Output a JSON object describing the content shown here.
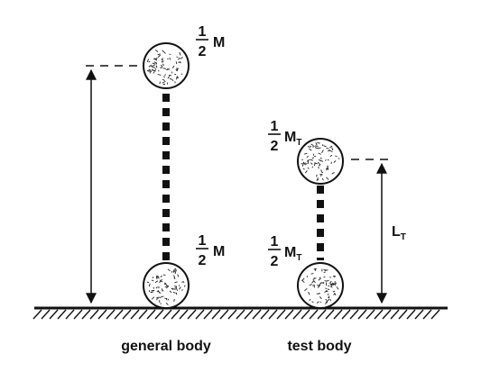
{
  "general_body": {
    "caption": "general body",
    "top_mass": {
      "fraction_num": "1",
      "fraction_den": "2",
      "symbol": "M",
      "subscript": ""
    },
    "bottom_mass": {
      "fraction_num": "1",
      "fraction_den": "2",
      "symbol": "M",
      "subscript": ""
    }
  },
  "test_body": {
    "caption": "test body",
    "top_mass": {
      "fraction_num": "1",
      "fraction_den": "2",
      "symbol": "M",
      "subscript": "T"
    },
    "bottom_mass": {
      "fraction_num": "1",
      "fraction_den": "2",
      "symbol": "M",
      "subscript": "T"
    },
    "height_label": {
      "symbol": "L",
      "subscript": "T"
    }
  }
}
